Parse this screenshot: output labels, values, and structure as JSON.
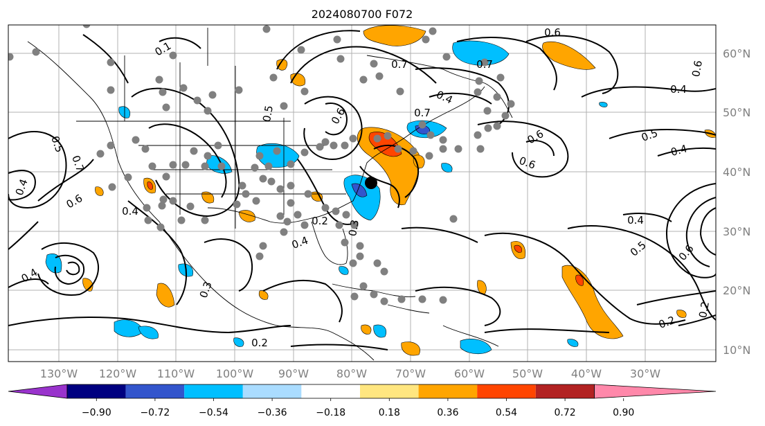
{
  "title": "2024080700 F072",
  "map": {
    "lon_labels": [
      "130°W",
      "120°W",
      "110°W",
      "100°W",
      "90°W",
      "80°W",
      "70°W",
      "60°W",
      "50°W",
      "40°W",
      "30°W"
    ],
    "lat_labels": [
      "60°N",
      "50°N",
      "40°N",
      "30°N",
      "20°N",
      "10°N"
    ],
    "contour_labels": [
      "0.1",
      "0.2",
      "0.3",
      "0.4",
      "0.5",
      "0.6",
      "0.7"
    ],
    "colors": {
      "land_line": "#000000",
      "contour": "#000000",
      "grid": "#b0b0b0",
      "station_marker": "#808080",
      "cyclone_marker": "#000000"
    }
  },
  "colorbar": {
    "tick_labels": [
      "−0.90",
      "−0.72",
      "−0.54",
      "−0.36",
      "−0.18",
      "0.18",
      "0.36",
      "0.54",
      "0.72",
      "0.90"
    ],
    "colors": [
      "#9933cc",
      "#000080",
      "#3355cc",
      "#00bfff",
      "#aadcff",
      "#ffffff",
      "#ffe680",
      "#ffa500",
      "#ff4500",
      "#b22222",
      "#ff88aa"
    ]
  }
}
